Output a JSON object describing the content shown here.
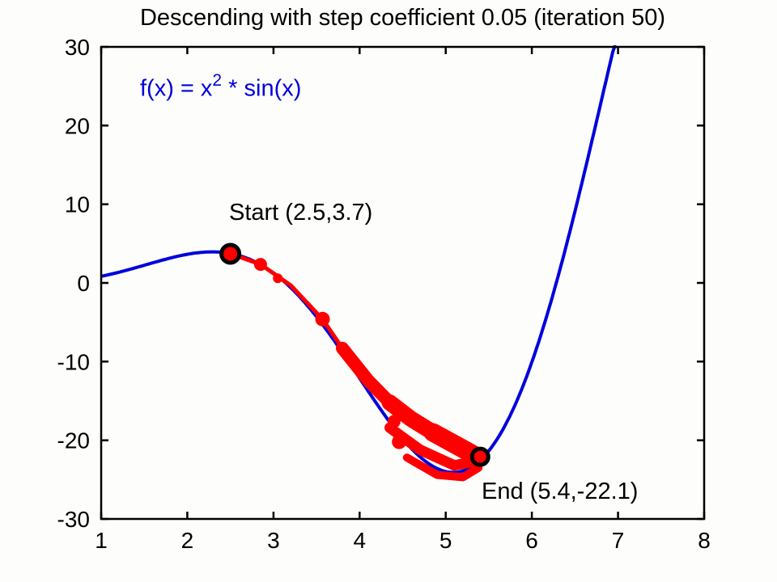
{
  "title": "Descending with step coefficient 0.05 (iteration 50)",
  "annotations": {
    "fx_pre": "f(x) = x",
    "fx_sup": "2",
    "fx_post": " * sin(x)",
    "start": "Start (2.5,3.7)",
    "end": "End (5.4,-22.1)"
  },
  "chart_data": {
    "type": "line",
    "title": "Descending with step coefficient 0.05 (iteration 50)",
    "function_label": "f(x) = x^2 * sin(x)",
    "fn": "x*x*Math.sin(x)",
    "xlabel": "",
    "ylabel": "",
    "xlim": [
      1,
      8
    ],
    "ylim": [
      -30,
      30
    ],
    "x_ticks": [
      1,
      2,
      3,
      4,
      5,
      6,
      7,
      8
    ],
    "y_ticks": [
      -30,
      -20,
      -10,
      0,
      10,
      20,
      30
    ],
    "grid": false,
    "curve_color": "#0000dd",
    "descent_color": "#ff0000",
    "marker_edge_color": "#000000",
    "step_coefficient": 0.05,
    "iterations": 50,
    "descent": {
      "start_point": {
        "x": 2.5,
        "y": 3.7,
        "label": "Start (2.5,3.7)",
        "r": 11
      },
      "end_point": {
        "x": 5.4,
        "y": -22.1,
        "label": "End (5.4,-22.1)",
        "r": 10
      },
      "segments": [
        {
          "w": 5,
          "pts": [
            [
              2.5,
              3.74
            ],
            [
              2.85,
              2.35
            ],
            [
              3.2,
              -0.3
            ],
            [
              3.57,
              -4.6
            ],
            [
              3.8,
              -8.3
            ]
          ]
        },
        {
          "w": 16,
          "pts": [
            [
              3.8,
              -8.3
            ],
            [
              4.1,
              -12.4
            ],
            [
              4.35,
              -15.2
            ]
          ]
        },
        {
          "w": 20,
          "pts": [
            [
              4.35,
              -15.2
            ],
            [
              4.6,
              -17.3
            ],
            [
              4.85,
              -19.0
            ]
          ]
        },
        {
          "w": 23,
          "pts": [
            [
              4.85,
              -19.0
            ],
            [
              5.1,
              -20.5
            ],
            [
              5.35,
              -22.0
            ]
          ]
        },
        {
          "w": 13,
          "pts": [
            [
              4.35,
              -18.4
            ],
            [
              4.7,
              -21.2
            ],
            [
              5.1,
              -23.2
            ],
            [
              5.38,
              -22.6
            ]
          ]
        },
        {
          "w": 10,
          "pts": [
            [
              4.55,
              -22.2
            ],
            [
              4.9,
              -24.4
            ],
            [
              5.2,
              -24.7
            ],
            [
              5.38,
              -23.5
            ]
          ]
        }
      ],
      "dots": [
        {
          "x": 2.85,
          "y": 2.35,
          "r": 8
        },
        {
          "x": 3.05,
          "y": 0.6,
          "r": 6
        },
        {
          "x": 3.57,
          "y": -4.6,
          "r": 9
        },
        {
          "x": 4.46,
          "y": -20.2,
          "r": 9
        },
        {
          "x": 4.4,
          "y": -17.6,
          "r": 8
        }
      ]
    }
  }
}
